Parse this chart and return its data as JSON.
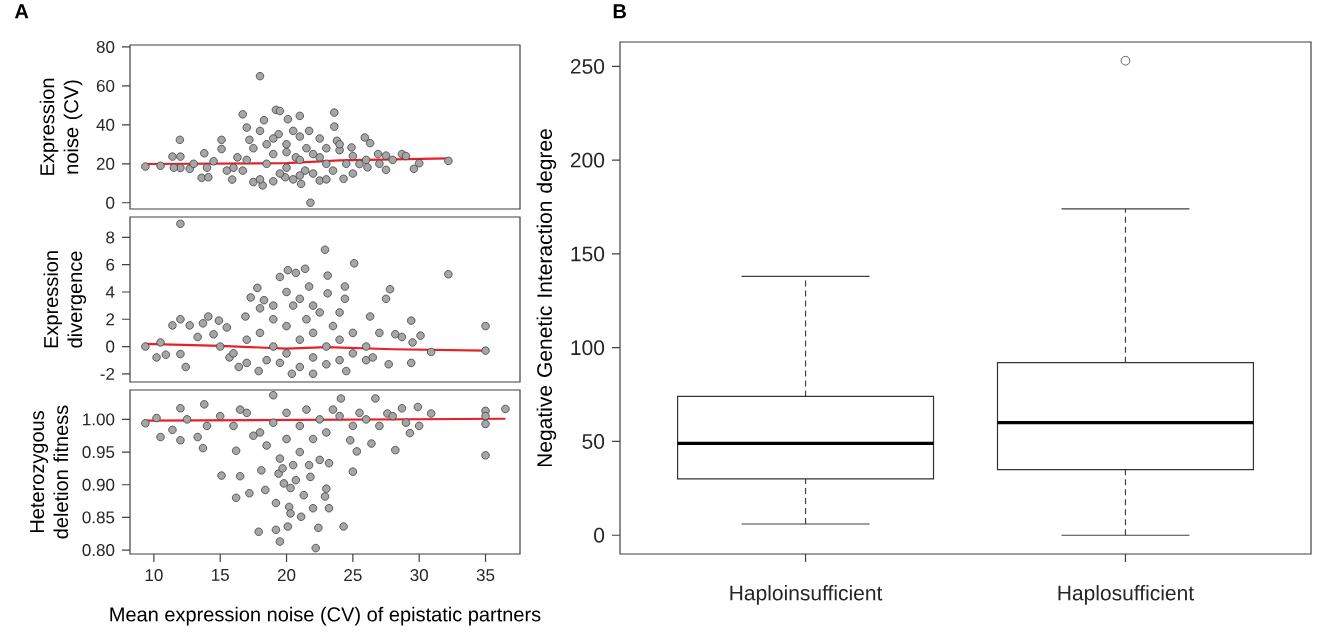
{
  "chart_data": [
    {
      "type": "scatter",
      "title": "A",
      "ylabel": "Expression noise (CV)",
      "xlim": [
        8.2,
        37.6
      ],
      "ylim": [
        -3.2,
        81
      ],
      "yticks": [
        0,
        20,
        40,
        60,
        80
      ],
      "tick_labels": "y",
      "series": [
        {
          "type": "scatter",
          "marker": "circle",
          "color": "#a6a6a6",
          "x": [
            9.36,
            11.4,
            11.96,
            12.0,
            12.0,
            12.7,
            13.6,
            13.8,
            14.1,
            14.5,
            15.1,
            15.1,
            15.5,
            15.9,
            16.3,
            16.7,
            17.0,
            17.2,
            16.7,
            17.5,
            18.0,
            18.0,
            18.3,
            18.2,
            19.2,
            19.5,
            19.4,
            20.1,
            19.9,
            20.5,
            21.0,
            21.1,
            21.7,
            21.8,
            21.4,
            20.7,
            22.5,
            22.5,
            23.6,
            23.6,
            23.8,
            23.5,
            24.3,
            24.9,
            25.5,
            25.9,
            26.3,
            26.1,
            26.9,
            27.5,
            27.5,
            28.7,
            29.6,
            30.0,
            18.5,
            19,
            19.5,
            20,
            20,
            20.5,
            21,
            21.5,
            22,
            22,
            23,
            23,
            24,
            24.5,
            19,
            18,
            17,
            16,
            22.5,
            21,
            25,
            26,
            27,
            28,
            29,
            13,
            14,
            10.5,
            11.5,
            32.2,
            24,
            20,
            19,
            21,
            17.5,
            18.5,
            23,
            25
          ],
          "values": [
            18.6,
            23.7,
            32.3,
            23.7,
            17.9,
            17.4,
            12.8,
            25.4,
            13.1,
            21.3,
            32.3,
            27.6,
            16.5,
            11.9,
            23.3,
            45.4,
            38.6,
            32.3,
            16.5,
            10.6,
            65.0,
            36.9,
            42.4,
            8.9,
            47.7,
            47.1,
            35.2,
            42.9,
            13.1,
            36.9,
            44.6,
            9.7,
            36.9,
            0,
            16.5,
            23.3,
            23.3,
            11.4,
            46.3,
            39.1,
            31.8,
            16.5,
            12.3,
            28.4,
            19.9,
            33.5,
            30.6,
            18.2,
            25.0,
            16.9,
            24.2,
            25.0,
            17.4,
            20.3,
            20,
            25,
            15,
            30,
            18,
            12,
            22,
            28,
            15,
            25,
            20,
            12,
            27,
            20,
            33,
            12,
            22,
            18,
            33,
            34,
            24,
            22,
            20,
            22,
            24,
            20,
            18,
            19,
            18,
            21.5,
            30,
            26,
            11,
            14,
            28,
            30,
            28,
            15
          ]
        },
        {
          "type": "line",
          "color": "#e8202a",
          "x": [
            9.3,
            20,
            24,
            32.2
          ],
          "values": [
            19.9,
            20.3,
            21.8,
            22.8
          ]
        }
      ]
    },
    {
      "type": "scatter",
      "ylabel": "Expression divergence",
      "xlim": [
        8.2,
        37.6
      ],
      "ylim": [
        -2.6,
        9.5
      ],
      "yticks": [
        -2,
        0,
        2,
        4,
        6,
        8
      ],
      "tick_labels": "y",
      "series": [
        {
          "type": "scatter",
          "marker": "circle",
          "color": "#a6a6a6",
          "x": [
            9.36,
            10.2,
            10.5,
            10.9,
            11.4,
            12.0,
            12.0,
            12.0,
            12.4,
            12.7,
            13.3,
            13.7,
            14.1,
            14.5,
            14.9,
            15.5,
            15.7,
            16.4,
            16.9,
            17.3,
            17.8,
            17.9,
            18.3,
            19.5,
            20.1,
            20.4,
            20.7,
            21.4,
            21.7,
            22.0,
            22.9,
            23.1,
            23.1,
            24.4,
            24.4,
            25.1,
            24.5,
            26.3,
            27.5,
            27.8,
            27.7,
            28.2,
            28.7,
            29.4,
            29.4,
            29.5,
            30.1,
            30.9,
            32.2,
            35,
            35,
            18,
            18.5,
            19,
            19,
            19.5,
            20,
            20,
            20.5,
            21,
            21,
            21.5,
            22,
            22,
            22.5,
            23,
            23,
            23.5,
            24,
            24,
            25,
            25,
            26,
            26,
            17,
            16,
            15,
            17,
            19,
            20,
            21,
            18,
            22,
            24,
            27,
            26.5
          ],
          "values": [
            0,
            -0.8,
            0.3,
            -0.6,
            1.55,
            9.0,
            2.0,
            -0.55,
            -1.5,
            1.55,
            0.7,
            1.7,
            2.2,
            0.9,
            1.9,
            1.4,
            -0.8,
            -1.5,
            2.2,
            3.6,
            4.3,
            -1.8,
            3.4,
            5.1,
            5.6,
            -2.0,
            5.4,
            5.7,
            4.4,
            -2.0,
            7.1,
            5.2,
            3.9,
            4.4,
            3.5,
            6.1,
            -1.8,
            2.2,
            3.5,
            4.2,
            -1.3,
            0.9,
            0.7,
            1.9,
            -1.2,
            0.3,
            0.8,
            -0.4,
            5.3,
            1.5,
            -0.3,
            1,
            -1,
            2,
            0,
            -1.2,
            1.5,
            -0.5,
            3,
            0.5,
            -1.5,
            2,
            1,
            -0.8,
            2.5,
            0,
            -1.3,
            1.5,
            0.5,
            -1,
            1,
            -0.5,
            0,
            -1,
            0.5,
            -0.5,
            0,
            -1.2,
            3,
            4,
            3.5,
            2.8,
            3,
            2.5,
            1,
            -0.8
          ]
        },
        {
          "type": "line",
          "color": "#e8202a",
          "x": [
            9.3,
            15,
            20,
            23,
            28,
            35
          ],
          "values": [
            0.2,
            0.05,
            -0.15,
            -0.05,
            -0.2,
            -0.3
          ]
        }
      ]
    },
    {
      "type": "scatter",
      "xlabel": "Mean expression noise (CV) of epistatic partners",
      "ylabel": "Heterozygous deletion fitness",
      "xlim": [
        8.2,
        37.6
      ],
      "ylim": [
        0.794,
        1.045
      ],
      "xticks": [
        10,
        15,
        20,
        25,
        30,
        35
      ],
      "yticks": [
        {
          "value": 0.8,
          "label": "0.80"
        },
        {
          "value": 0.85,
          "label": "0.85"
        },
        {
          "value": 0.9,
          "label": "0.90"
        },
        {
          "value": 0.95,
          "label": "0.95"
        },
        {
          "value": 1.0,
          "label": "1.00"
        }
      ],
      "series": [
        {
          "type": "scatter",
          "marker": "circle",
          "color": "#a6a6a6",
          "x": [
            9.36,
            10.2,
            10.5,
            11.4,
            12.0,
            12.0,
            13.3,
            13.8,
            13.7,
            15.1,
            16.2,
            16.2,
            16.5,
            17.2,
            17.9,
            18.1,
            18.4,
            19.0,
            19.2,
            19.2,
            19.5,
            19.4,
            19.8,
            20.2,
            20.1,
            20.3,
            20.7,
            21.1,
            21.3,
            21.8,
            22.0,
            22.2,
            22.4,
            22.5,
            22.9,
            23.2,
            23.2,
            23.0,
            24.1,
            24.3,
            25.0,
            25.3,
            24.8,
            26.4,
            26.7,
            27.6,
            28.2,
            28.7,
            29.3,
            29.9,
            30.9,
            35,
            35,
            35,
            35,
            36.5,
            12.5,
            14,
            15,
            16,
            17,
            18,
            18.5,
            19,
            19.5,
            20,
            20,
            20.5,
            21,
            21,
            21.5,
            22,
            22.5,
            23,
            24,
            25,
            26,
            27,
            28,
            29,
            30,
            17.5,
            19.7,
            20.3,
            21.7,
            16.5,
            23.5,
            25.5
          ],
          "values": [
            0.994,
            1.002,
            0.973,
            0.984,
            0.968,
            1.017,
            0.973,
            1.023,
            0.956,
            0.914,
            0.952,
            0.88,
            0.913,
            0.887,
            0.828,
            0.922,
            0.892,
            1.037,
            0.872,
            0.831,
            0.813,
            0.917,
            0.902,
            0.866,
            0.836,
            0.856,
            0.907,
            0.851,
            0.884,
            0.912,
            0.864,
            0.803,
            0.834,
            0.938,
            0.882,
            0.933,
            0.864,
            0.894,
            1.032,
            0.836,
            0.92,
            0.951,
            0.968,
            0.963,
            1.032,
            1.009,
            0.953,
            1.017,
            0.979,
            1.019,
            1.009,
            1.013,
            1.005,
            0.993,
            0.945,
            1.016,
            1.0,
            0.99,
            1.005,
            0.99,
            1.01,
            0.98,
            0.96,
            0.995,
            0.94,
            1.01,
            0.97,
            0.93,
            0.99,
            0.95,
            1.015,
            0.97,
            1.0,
            0.98,
            1.005,
            0.99,
            1.0,
            0.99,
            1.005,
            0.995,
            0.99,
            0.975,
            0.925,
            0.895,
            0.93,
            1.015,
            1.015,
            1.01
          ]
        },
        {
          "type": "line",
          "color": "#e8202a",
          "x": [
            9.3,
            36.5
          ],
          "values": [
            0.998,
            1.001
          ]
        }
      ]
    },
    {
      "type": "box",
      "title": "B",
      "ylabel": "Negative Genetic Interaction degree",
      "categories": [
        "Haploinsufficient",
        "Haplosufficient"
      ],
      "ylim": [
        -10,
        263
      ],
      "yticks": [
        0,
        50,
        100,
        150,
        200,
        250
      ],
      "boxes": [
        {
          "low": 6,
          "q1": 30,
          "median": 49,
          "q3": 74,
          "high": 138
        },
        {
          "low": 0,
          "q1": 35,
          "median": 60,
          "q3": 92,
          "high": 174,
          "outliers": [
            253
          ]
        }
      ]
    }
  ]
}
